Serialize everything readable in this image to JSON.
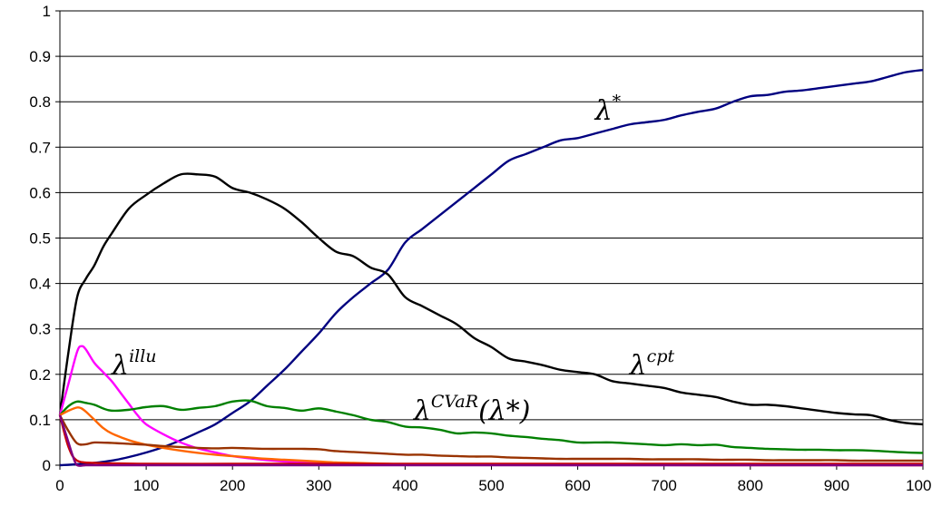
{
  "chart_data": {
    "type": "line",
    "title": "",
    "xlabel": "",
    "ylabel": "",
    "xlim": [
      0,
      1000
    ],
    "ylim": [
      0,
      1
    ],
    "x_ticks": [
      "0",
      "100",
      "200",
      "300",
      "400",
      "500",
      "600",
      "700",
      "800",
      "900",
      "1000"
    ],
    "y_ticks": [
      "0",
      "0.1",
      "0.2",
      "0.3",
      "0.4",
      "0.5",
      "0.6",
      "0.7",
      "0.8",
      "0.9",
      "1"
    ],
    "grid": "horizontal",
    "annotations": [
      {
        "base": "λ",
        "sup": "*",
        "x": 620,
        "y": 0.76
      },
      {
        "base": "λ",
        "sup": "cpt",
        "x": 660,
        "y": 0.2
      },
      {
        "base": "λ",
        "sup": "illu",
        "x": 60,
        "y": 0.2
      },
      {
        "base": "λ",
        "sup": "CVaR",
        "tail": "(λ*)",
        "x": 410,
        "y": 0.1
      }
    ],
    "series": [
      {
        "color": "#000080",
        "x": [
          0,
          20,
          40,
          60,
          80,
          100,
          120,
          140,
          160,
          180,
          200,
          220,
          240,
          260,
          280,
          300,
          320,
          340,
          360,
          380,
          400,
          420,
          440,
          460,
          480,
          500,
          520,
          540,
          560,
          580,
          600,
          620,
          640,
          660,
          680,
          700,
          720,
          740,
          760,
          780,
          800,
          820,
          840,
          860,
          880,
          900,
          920,
          940,
          960,
          980,
          1000
        ],
        "values": [
          0.0,
          0.002,
          0.005,
          0.01,
          0.018,
          0.028,
          0.04,
          0.055,
          0.072,
          0.09,
          0.115,
          0.14,
          0.175,
          0.21,
          0.25,
          0.29,
          0.335,
          0.37,
          0.4,
          0.43,
          0.49,
          0.52,
          0.55,
          0.58,
          0.61,
          0.64,
          0.67,
          0.685,
          0.7,
          0.715,
          0.72,
          0.73,
          0.74,
          0.75,
          0.755,
          0.76,
          0.77,
          0.778,
          0.785,
          0.8,
          0.812,
          0.815,
          0.822,
          0.825,
          0.83,
          0.835,
          0.84,
          0.845,
          0.855,
          0.865,
          0.87
        ]
      },
      {
        "color": "#000000",
        "x": [
          0,
          10,
          20,
          30,
          40,
          50,
          60,
          80,
          100,
          120,
          140,
          160,
          180,
          200,
          220,
          240,
          260,
          280,
          300,
          320,
          340,
          360,
          380,
          400,
          420,
          440,
          460,
          480,
          500,
          520,
          540,
          560,
          580,
          600,
          620,
          640,
          660,
          680,
          700,
          720,
          740,
          760,
          780,
          800,
          820,
          840,
          860,
          880,
          900,
          920,
          940,
          960,
          980,
          1000
        ],
        "values": [
          0.11,
          0.25,
          0.37,
          0.41,
          0.44,
          0.48,
          0.51,
          0.565,
          0.595,
          0.62,
          0.64,
          0.64,
          0.635,
          0.61,
          0.6,
          0.585,
          0.565,
          0.535,
          0.5,
          0.47,
          0.46,
          0.435,
          0.42,
          0.37,
          0.35,
          0.33,
          0.31,
          0.28,
          0.26,
          0.235,
          0.228,
          0.22,
          0.21,
          0.205,
          0.2,
          0.185,
          0.18,
          0.175,
          0.17,
          0.16,
          0.155,
          0.15,
          0.14,
          0.133,
          0.133,
          0.13,
          0.125,
          0.12,
          0.115,
          0.112,
          0.11,
          0.1,
          0.093,
          0.09
        ]
      },
      {
        "color": "#ff00ff",
        "x": [
          0,
          10,
          20,
          25,
          30,
          40,
          50,
          60,
          70,
          80,
          90,
          100,
          120,
          140,
          160,
          180,
          200,
          220,
          240,
          260,
          280,
          300,
          320,
          340,
          360,
          380,
          400,
          450,
          500,
          600,
          800,
          1000
        ],
        "values": [
          0.11,
          0.18,
          0.25,
          0.262,
          0.255,
          0.225,
          0.205,
          0.185,
          0.16,
          0.135,
          0.11,
          0.09,
          0.068,
          0.05,
          0.037,
          0.028,
          0.02,
          0.015,
          0.011,
          0.008,
          0.006,
          0.004,
          0.003,
          0.002,
          0.0015,
          0.001,
          0.0008,
          0.0005,
          0.0003,
          0.0002,
          0.0001,
          0.0
        ]
      },
      {
        "color": "#008000",
        "x": [
          0,
          10,
          20,
          30,
          40,
          50,
          60,
          80,
          100,
          120,
          140,
          160,
          180,
          200,
          220,
          240,
          260,
          280,
          300,
          320,
          340,
          360,
          380,
          400,
          420,
          440,
          460,
          480,
          500,
          520,
          540,
          560,
          580,
          600,
          620,
          640,
          660,
          680,
          700,
          720,
          740,
          760,
          780,
          800,
          820,
          840,
          860,
          880,
          900,
          920,
          940,
          960,
          980,
          1000
        ],
        "values": [
          0.11,
          0.13,
          0.14,
          0.137,
          0.133,
          0.125,
          0.12,
          0.122,
          0.128,
          0.13,
          0.122,
          0.126,
          0.13,
          0.14,
          0.142,
          0.13,
          0.126,
          0.12,
          0.125,
          0.118,
          0.11,
          0.1,
          0.095,
          0.085,
          0.083,
          0.078,
          0.07,
          0.072,
          0.07,
          0.065,
          0.062,
          0.058,
          0.055,
          0.05,
          0.05,
          0.05,
          0.048,
          0.046,
          0.044,
          0.046,
          0.044,
          0.045,
          0.04,
          0.038,
          0.036,
          0.035,
          0.034,
          0.034,
          0.033,
          0.033,
          0.032,
          0.03,
          0.028,
          0.027
        ]
      },
      {
        "color": "#ff6600",
        "x": [
          0,
          10,
          20,
          25,
          30,
          40,
          50,
          60,
          80,
          100,
          120,
          140,
          160,
          180,
          200,
          220,
          240,
          260,
          280,
          300,
          320,
          340,
          360,
          380,
          400,
          450,
          500,
          600,
          700,
          800,
          900,
          1000
        ],
        "values": [
          0.11,
          0.12,
          0.127,
          0.125,
          0.118,
          0.1,
          0.082,
          0.07,
          0.055,
          0.045,
          0.038,
          0.032,
          0.027,
          0.023,
          0.02,
          0.017,
          0.014,
          0.012,
          0.01,
          0.008,
          0.006,
          0.005,
          0.004,
          0.003,
          0.002,
          0.0015,
          0.001,
          0.0005,
          0.0003,
          0.0002,
          0.0001,
          0.0
        ]
      },
      {
        "color": "#993300",
        "x": [
          0,
          10,
          20,
          30,
          40,
          60,
          80,
          100,
          120,
          140,
          160,
          180,
          200,
          220,
          240,
          260,
          280,
          300,
          320,
          340,
          360,
          380,
          400,
          420,
          440,
          460,
          480,
          500,
          520,
          540,
          560,
          580,
          600,
          620,
          640,
          660,
          680,
          700,
          720,
          740,
          760,
          780,
          800,
          820,
          840,
          860,
          880,
          900,
          920,
          940,
          960,
          980,
          1000
        ],
        "values": [
          0.11,
          0.075,
          0.048,
          0.046,
          0.05,
          0.049,
          0.047,
          0.045,
          0.042,
          0.04,
          0.038,
          0.037,
          0.038,
          0.037,
          0.036,
          0.036,
          0.036,
          0.035,
          0.031,
          0.029,
          0.027,
          0.025,
          0.023,
          0.023,
          0.021,
          0.02,
          0.019,
          0.019,
          0.017,
          0.016,
          0.015,
          0.014,
          0.014,
          0.014,
          0.014,
          0.014,
          0.013,
          0.013,
          0.013,
          0.013,
          0.012,
          0.012,
          0.012,
          0.011,
          0.011,
          0.011,
          0.011,
          0.011,
          0.01,
          0.01,
          0.01,
          0.01,
          0.01
        ]
      },
      {
        "color": "#cc0000",
        "x": [
          0,
          10,
          20,
          40,
          60,
          100,
          200,
          300,
          400,
          500,
          600,
          700,
          800,
          900,
          1000
        ],
        "values": [
          0.11,
          0.04,
          0.01,
          0.005,
          0.004,
          0.003,
          0.003,
          0.003,
          0.003,
          0.003,
          0.003,
          0.003,
          0.003,
          0.003,
          0.003
        ]
      },
      {
        "color": "#800080",
        "x": [
          0,
          5,
          10,
          15,
          20,
          30,
          40,
          100,
          200,
          400,
          600,
          800,
          1000
        ],
        "values": [
          0.11,
          0.08,
          0.05,
          0.02,
          0.0,
          0.0,
          0.0,
          0.0,
          0.0,
          0.0,
          0.0,
          0.0,
          0.0
        ]
      }
    ]
  }
}
